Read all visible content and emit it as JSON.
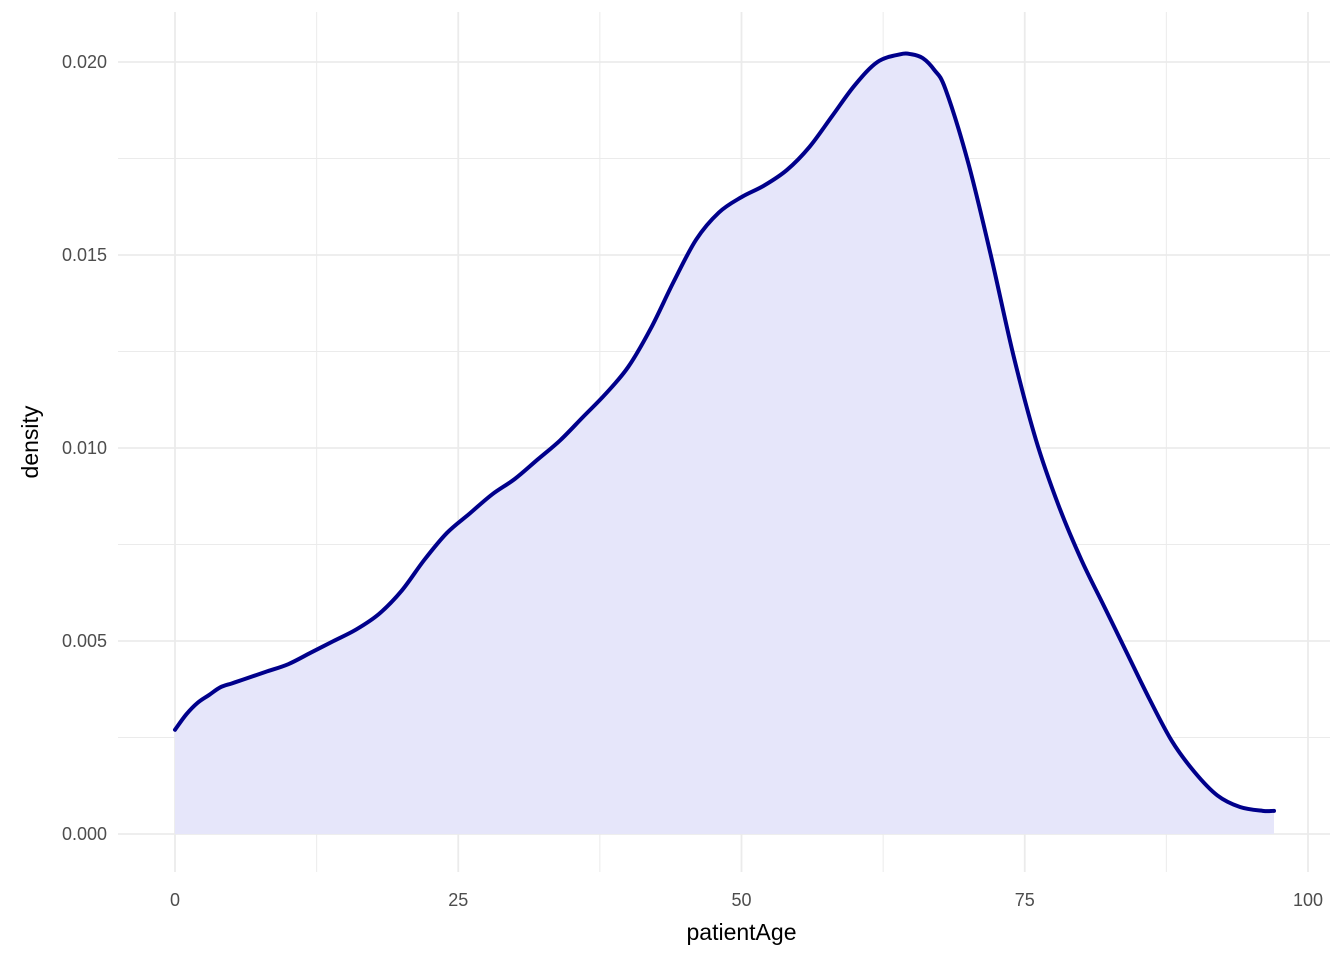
{
  "chart_data": {
    "type": "area",
    "title": "",
    "xlabel": "patientAge",
    "ylabel": "density",
    "xlim": [
      0,
      100
    ],
    "ylim": [
      0,
      0.02
    ],
    "x_ticks": [
      0,
      25,
      50,
      75,
      100
    ],
    "x_tick_labels": [
      "0",
      "25",
      "50",
      "75",
      "100"
    ],
    "y_ticks": [
      0,
      0.005,
      0.01,
      0.015,
      0.02
    ],
    "y_tick_labels": [
      "0.000",
      "0.005",
      "0.010",
      "0.015",
      "0.020"
    ],
    "grid": true,
    "legend": "none",
    "line_color": "#00008B",
    "fill_color": "#E6E6FA",
    "series": [
      {
        "x": [
          0,
          1,
          2,
          3,
          4,
          5,
          6,
          8,
          10,
          12,
          14,
          16,
          18,
          20,
          22,
          24,
          26,
          28,
          30,
          32,
          34,
          36,
          38,
          40,
          42,
          44,
          46,
          48,
          50,
          52,
          54,
          56,
          58,
          60,
          62,
          64,
          65,
          66,
          67,
          68,
          70,
          72,
          74,
          76,
          78,
          80,
          82,
          84,
          86,
          88,
          90,
          92,
          94,
          96,
          97
        ],
        "values": [
          0.0027,
          0.0031,
          0.0034,
          0.0036,
          0.0038,
          0.0039,
          0.004,
          0.0042,
          0.0044,
          0.0047,
          0.005,
          0.0053,
          0.0057,
          0.0063,
          0.0071,
          0.0078,
          0.0083,
          0.0088,
          0.0092,
          0.0097,
          0.0102,
          0.0108,
          0.0114,
          0.0121,
          0.0131,
          0.0143,
          0.0154,
          0.0161,
          0.0165,
          0.0168,
          0.0172,
          0.0178,
          0.0186,
          0.0194,
          0.02,
          0.0202,
          0.0202,
          0.0201,
          0.0198,
          0.0193,
          0.0174,
          0.015,
          0.0124,
          0.0102,
          0.0085,
          0.0071,
          0.0059,
          0.0047,
          0.0035,
          0.0024,
          0.0016,
          0.001,
          0.0007,
          0.0006,
          0.0006
        ]
      }
    ]
  }
}
